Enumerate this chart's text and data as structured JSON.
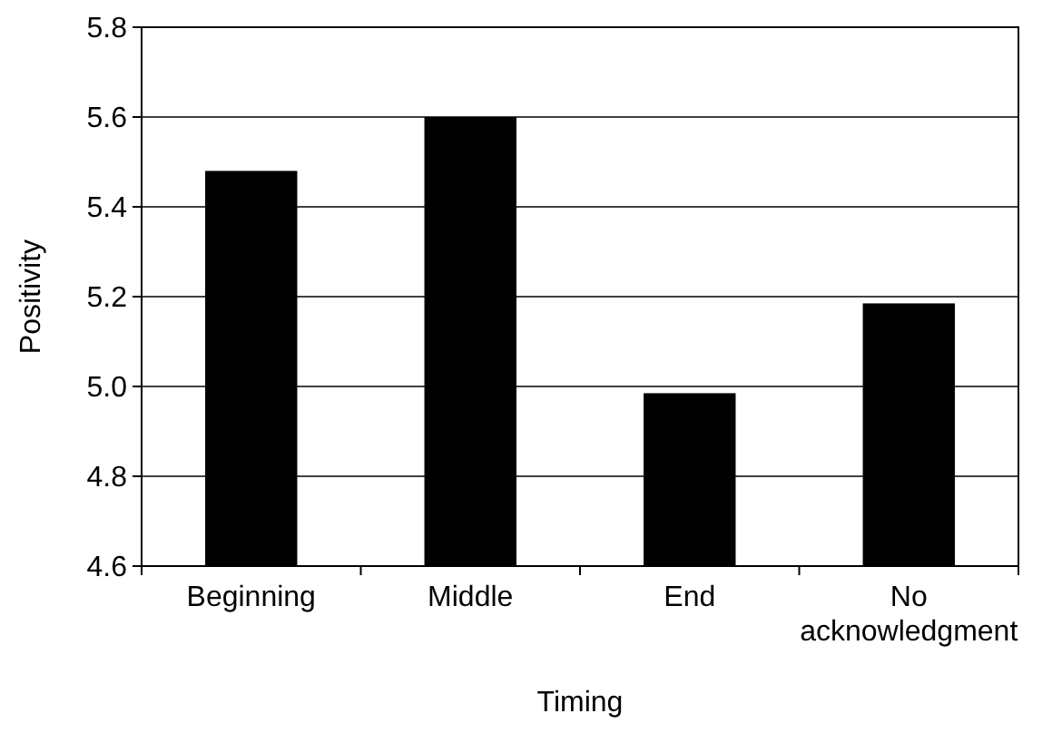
{
  "chart_data": {
    "type": "bar",
    "xlabel": "Timing",
    "ylabel": "Positivity",
    "categories": [
      "Beginning",
      "Middle",
      "End",
      "No acknowledgment"
    ],
    "values": [
      5.48,
      5.6,
      4.985,
      5.185
    ],
    "color": "#000000",
    "ylim": [
      4.6,
      5.8
    ],
    "yticks": [
      4.6,
      4.8,
      {
        "value": 5,
        "label": "5.0"
      },
      5.2,
      5.4,
      5.6,
      5.8
    ],
    "grid": "y"
  }
}
